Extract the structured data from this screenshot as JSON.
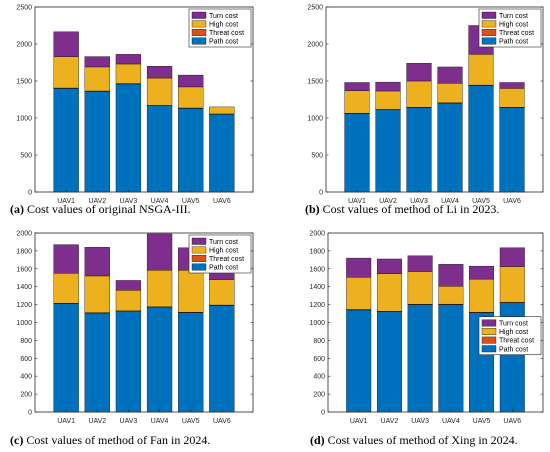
{
  "colors": {
    "path": "#0072BD",
    "threat": "#D95319",
    "high": "#EDB120",
    "turn": "#7E2F8E",
    "axis": "#262626"
  },
  "chart_data": [
    {
      "type": "bar",
      "stacked": true,
      "caption_label": "(a)",
      "caption_text": " Cost values of original NSGA-III.",
      "categories": [
        "UAV1",
        "UAV2",
        "UAV3",
        "UAV4",
        "UAV5",
        "UAV6"
      ],
      "ylim": [
        0,
        2500
      ],
      "yticks": [
        0,
        500,
        1000,
        1500,
        2000,
        2500
      ],
      "legend_position": "top-right",
      "series": [
        {
          "name": "Path cost",
          "key": "path",
          "values": [
            1400,
            1360,
            1460,
            1165,
            1130,
            1050
          ]
        },
        {
          "name": "Threat cost",
          "key": "threat",
          "values": [
            5,
            5,
            5,
            5,
            5,
            5
          ]
        },
        {
          "name": "High cost",
          "key": "high",
          "values": [
            425,
            325,
            265,
            370,
            285,
            95
          ]
        },
        {
          "name": "Turn cost",
          "key": "turn",
          "values": [
            335,
            140,
            130,
            160,
            160,
            0
          ]
        }
      ]
    },
    {
      "type": "bar",
      "stacked": true,
      "caption_label": "(b)",
      "caption_text": " Cost values of method of Li in 2023.",
      "categories": [
        "UAV1",
        "UAV2",
        "UAV3",
        "UAV4",
        "UAV5",
        "UAV6"
      ],
      "ylim": [
        0,
        2500
      ],
      "yticks": [
        0,
        500,
        1000,
        1500,
        2000,
        2500
      ],
      "legend_position": "top-right",
      "series": [
        {
          "name": "Path cost",
          "key": "path",
          "values": [
            1060,
            1110,
            1140,
            1200,
            1440,
            1140
          ]
        },
        {
          "name": "Threat cost",
          "key": "threat",
          "values": [
            5,
            5,
            5,
            5,
            5,
            5
          ]
        },
        {
          "name": "High cost",
          "key": "high",
          "values": [
            305,
            250,
            355,
            265,
            415,
            255
          ]
        },
        {
          "name": "Turn cost",
          "key": "turn",
          "values": [
            110,
            120,
            240,
            220,
            390,
            80
          ]
        }
      ]
    },
    {
      "type": "bar",
      "stacked": true,
      "caption_label": "(c)",
      "caption_text": " Cost values of method of Fan in 2024.",
      "categories": [
        "UAV1",
        "UAV2",
        "UAV3",
        "UAV4",
        "UAV5",
        "UAV6"
      ],
      "ylim": [
        0,
        2000
      ],
      "yticks": [
        0,
        200,
        400,
        600,
        800,
        1000,
        1200,
        1400,
        1600,
        1800,
        2000
      ],
      "legend_position": "top-right",
      "series": [
        {
          "name": "Path cost",
          "key": "path",
          "values": [
            1210,
            1105,
            1125,
            1170,
            1110,
            1190
          ]
        },
        {
          "name": "Threat cost",
          "key": "threat",
          "values": [
            5,
            5,
            5,
            5,
            5,
            5
          ]
        },
        {
          "name": "High cost",
          "key": "high",
          "values": [
            335,
            410,
            230,
            410,
            470,
            285
          ]
        },
        {
          "name": "Turn cost",
          "key": "turn",
          "values": [
            320,
            320,
            110,
            405,
            250,
            370
          ]
        }
      ]
    },
    {
      "type": "bar",
      "stacked": true,
      "caption_label": "(d)",
      "caption_text": " Cost values of method of Xing in 2024.",
      "categories": [
        "UAV1",
        "UAV2",
        "UAV3",
        "UAV4",
        "UAV5",
        "UAV6"
      ],
      "ylim": [
        0,
        2000
      ],
      "yticks": [
        0,
        200,
        400,
        600,
        800,
        1000,
        1200,
        1400,
        1600,
        1800,
        2000
      ],
      "legend_position": "bottom-right",
      "series": [
        {
          "name": "Path cost",
          "key": "path",
          "values": [
            1140,
            1120,
            1200,
            1200,
            1110,
            1220
          ]
        },
        {
          "name": "Threat cost",
          "key": "threat",
          "values": [
            5,
            5,
            5,
            5,
            5,
            5
          ]
        },
        {
          "name": "High cost",
          "key": "high",
          "values": [
            360,
            420,
            365,
            200,
            370,
            400
          ]
        },
        {
          "name": "Turn cost",
          "key": "turn",
          "values": [
            215,
            165,
            175,
            245,
            145,
            210
          ]
        }
      ]
    }
  ]
}
